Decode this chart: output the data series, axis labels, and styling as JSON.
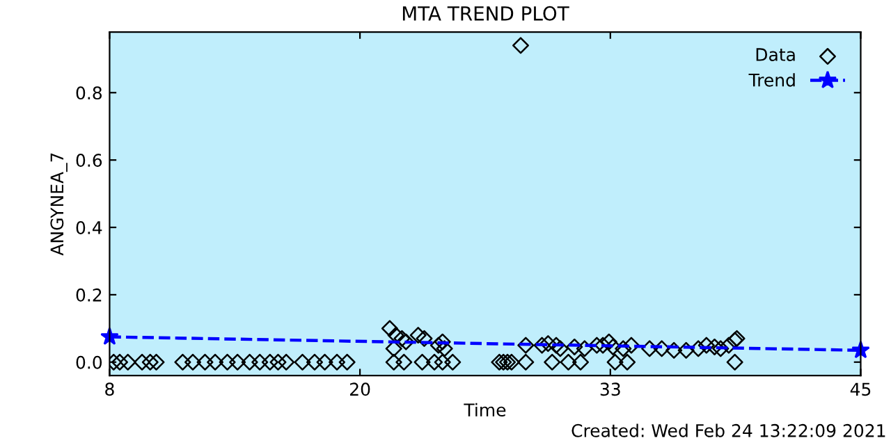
{
  "chart_data": {
    "type": "scatter",
    "title": "MTA TREND PLOT",
    "xlabel": "Time",
    "ylabel": "ANGYNEA_7",
    "annotations": [
      "Created: Wed Feb 24 13:22:09 2021"
    ],
    "xlim": [
      8,
      45
    ],
    "xticks": [
      8,
      {
        "value": 20.333,
        "label": "20"
      },
      {
        "value": 32.667,
        "label": "33"
      },
      45
    ],
    "ylim": [
      -0.04,
      0.98
    ],
    "yticks": [
      {
        "value": 0,
        "label": "0.0"
      },
      0.2,
      0.4,
      0.6,
      0.8
    ],
    "grid": false,
    "legend": "top right",
    "series": [
      {
        "name": "Data",
        "marker": "diamond",
        "color": "#000000",
        "x": [
          8.2,
          8.5,
          8.9,
          9.6,
          10.0,
          10.3,
          11.6,
          12.1,
          12.7,
          13.2,
          13.8,
          14.3,
          14.9,
          15.4,
          15.9,
          16.3,
          16.7,
          17.5,
          18.1,
          18.6,
          19.2,
          19.7,
          22.0,
          22.5,
          23.4,
          24.0,
          24.4,
          24.9,
          27.2,
          27.4,
          27.6,
          27.8,
          28.5,
          29.8,
          30.6,
          31.2,
          32.9,
          33.5,
          38.8,
          21.8,
          22.1,
          22.4,
          22.6,
          22.0,
          23.2,
          23.5,
          24.4,
          24.2,
          24.5,
          28.25,
          28.5,
          29.3,
          29.6,
          30.0,
          30.2,
          30.9,
          31.4,
          32.0,
          32.6,
          32.3,
          32.8,
          33.3,
          33.7,
          34.6,
          35.2,
          35.8,
          36.4,
          37.0,
          37.4,
          37.8,
          38.1,
          38.5,
          38.8,
          38.9
        ],
        "values": [
          0,
          0,
          0,
          0,
          0,
          0,
          0,
          0,
          0,
          0,
          0,
          0,
          0,
          0,
          0,
          0,
          0,
          0,
          0,
          0,
          0,
          0,
          0,
          0,
          0,
          0,
          0,
          0,
          0,
          0,
          0,
          0,
          0,
          0,
          0,
          0,
          0,
          0,
          0,
          0.1,
          0.08,
          0.07,
          0.06,
          0.04,
          0.08,
          0.07,
          0.06,
          0.05,
          0.04,
          0.94,
          0.05,
          0.05,
          0.055,
          0.05,
          0.04,
          0.045,
          0.04,
          0.05,
          0.06,
          0.05,
          0.045,
          0.04,
          0.05,
          0.04,
          0.04,
          0.035,
          0.035,
          0.04,
          0.05,
          0.045,
          0.04,
          0.05,
          0.065,
          0.07
        ]
      },
      {
        "name": "Trend",
        "type": "line",
        "marker": "star",
        "line_style": "dashed",
        "color": "#0000ff",
        "x": [
          8,
          45
        ],
        "values": [
          0.075,
          0.035
        ]
      }
    ]
  }
}
